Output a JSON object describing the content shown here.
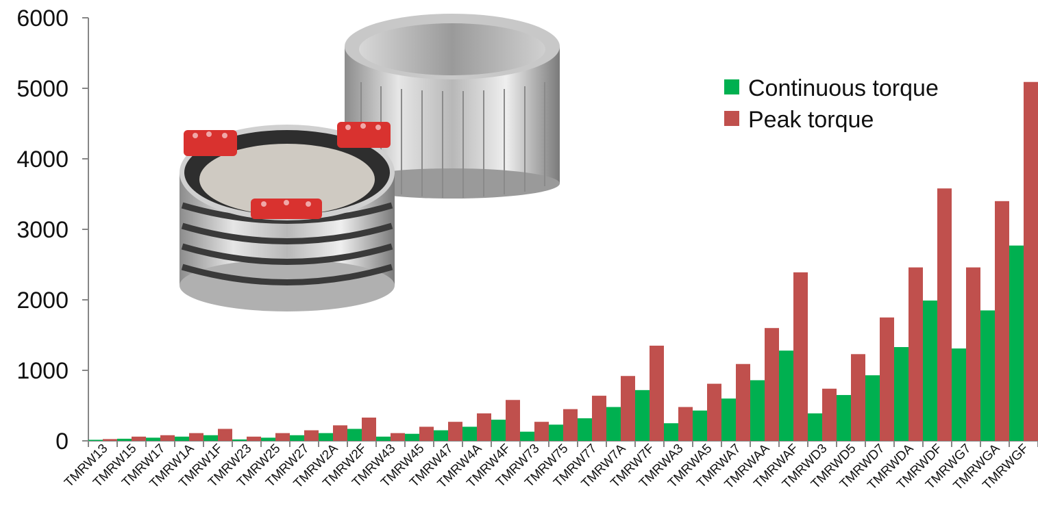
{
  "chart_data": {
    "type": "bar",
    "categories": [
      "TMRW13",
      "TMRW15",
      "TMRW17",
      "TMRW1A",
      "TMRW1F",
      "TMRW23",
      "TMRW25",
      "TMRW27",
      "TMRW2A",
      "TMRW2F",
      "TMRW43",
      "TMRW45",
      "TMRW47",
      "TMRW4A",
      "TMRW4F",
      "TMRW73",
      "TMRW75",
      "TMRW77",
      "TMRW7A",
      "TMRW7F",
      "TMRWA3",
      "TMRWA5",
      "TMRWA7",
      "TMRWAA",
      "TMRWAF",
      "TMRWD3",
      "TMRWD5",
      "TMRWD7",
      "TMRWDA",
      "TMRWDF",
      "TMRWG7",
      "TMRWGA",
      "TMRWGF"
    ],
    "series": [
      {
        "name": "Continuous torque",
        "color": "#00b050",
        "values": [
          15,
          30,
          45,
          60,
          80,
          20,
          45,
          80,
          110,
          170,
          60,
          100,
          150,
          200,
          300,
          130,
          230,
          320,
          480,
          720,
          250,
          430,
          600,
          860,
          1280,
          390,
          650,
          930,
          1330,
          1990,
          1310,
          1850,
          2770
        ]
      },
      {
        "name": "Peak torque",
        "color": "#c0504d",
        "values": [
          25,
          60,
          80,
          110,
          170,
          60,
          110,
          150,
          220,
          330,
          110,
          200,
          270,
          390,
          580,
          270,
          450,
          640,
          920,
          1350,
          480,
          810,
          1090,
          1600,
          2390,
          740,
          1230,
          1750,
          2460,
          3580,
          2460,
          3400,
          5090
        ]
      }
    ],
    "yticks": [
      "0",
      "1000",
      "2000",
      "3000",
      "4000",
      "5000",
      "6000"
    ],
    "ylim": [
      0,
      6000
    ],
    "legend_position": "top-right",
    "title": "",
    "xlabel": "",
    "ylabel": ""
  },
  "image": {
    "description_icon": "motor-rotor-stator-photo"
  }
}
